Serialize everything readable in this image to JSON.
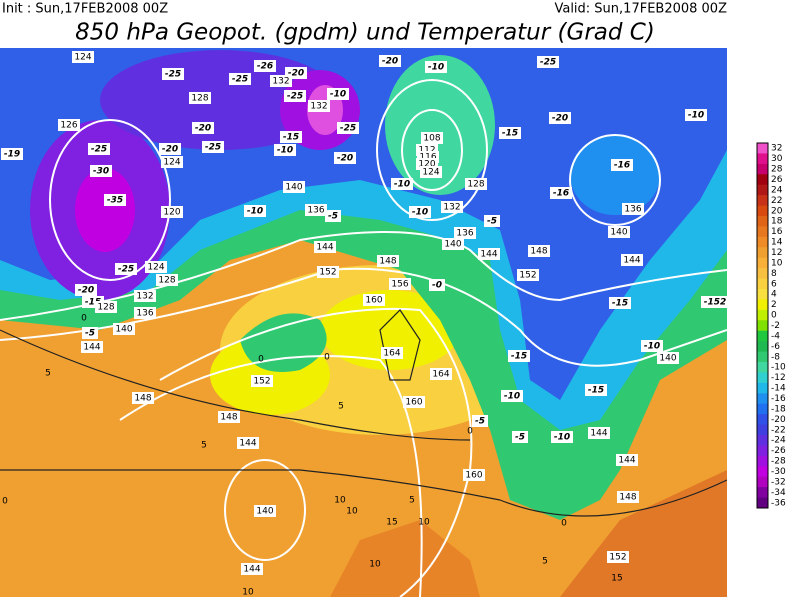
{
  "header": {
    "init": "Init : Sun,17FEB2008 00Z",
    "valid": "Valid: Sun,17FEB2008 00Z",
    "title": "850 hPa Geopot. (gpdm) und Temperatur (Grad C)"
  },
  "colorbar": {
    "ticks": [
      32,
      30,
      28,
      26,
      24,
      22,
      20,
      18,
      16,
      14,
      12,
      10,
      8,
      6,
      4,
      2,
      0,
      -2,
      -4,
      -6,
      -8,
      -10,
      -12,
      -14,
      -16,
      -18,
      -20,
      -22,
      -24,
      -26,
      -28,
      -30,
      -32,
      -34,
      -36
    ],
    "colors": [
      "#f050c8",
      "#e0108c",
      "#c8006e",
      "#a00010",
      "#b01818",
      "#c83218",
      "#d84a10",
      "#e06418",
      "#e87820",
      "#f08c28",
      "#f0a030",
      "#f8b038",
      "#f8c040",
      "#f8d040",
      "#f8e040",
      "#f0f000",
      "#c0f000",
      "#80e000",
      "#20c840",
      "#20b850",
      "#30c870",
      "#40d8a0",
      "#30d0d0",
      "#20b8e8",
      "#2090f0",
      "#2070f0",
      "#3050e8",
      "#4040e0",
      "#6030e0",
      "#8020e0",
      "#a010e0",
      "#c000e0",
      "#b000c0",
      "#8000a0",
      "#600080"
    ]
  },
  "map": {
    "contour_labels": [
      "124",
      "-25",
      "-26",
      "-25",
      "-20",
      "132",
      "-25",
      "132",
      "-10",
      "-25",
      "-20",
      "-10",
      "-25",
      "128",
      "126",
      "-20",
      "-15",
      "108",
      "112",
      "116",
      "120",
      "124",
      "-15",
      "-20",
      "-10",
      "-19",
      "-25",
      "-20",
      "-25",
      "-10",
      "-20",
      "124",
      "-16",
      "-30",
      "140",
      "-10",
      "128",
      "-16",
      "-35",
      "120",
      "-10",
      "136",
      "-5",
      "-10",
      "132",
      "-5",
      "136",
      "136",
      "140",
      "144",
      "140",
      "144",
      "148",
      "144",
      "-25",
      "124",
      "148",
      "152",
      "152",
      "-20",
      "128",
      "132",
      "156",
      "-0",
      "-15",
      "128",
      "136",
      "-15",
      "-152",
      "160",
      "140",
      "-5",
      "0",
      "144",
      "-10",
      "140",
      "164",
      "-15",
      "0",
      "0",
      "152",
      "164",
      "5",
      "-15",
      "148",
      "160",
      "-10",
      "5",
      "148",
      "-5",
      "0",
      "-5",
      "-10",
      "144",
      "5",
      "144",
      "144",
      "160",
      "0",
      "10",
      "5",
      "148",
      "140",
      "10",
      "15",
      "10",
      "0",
      "152",
      "144",
      "10",
      "5",
      "15",
      "10"
    ]
  }
}
